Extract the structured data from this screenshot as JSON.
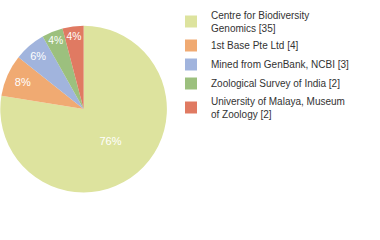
{
  "chart_data": {
    "type": "pie",
    "categories": [
      "Centre for Biodiversity Genomics [35]",
      "1st Base Pte Ltd [4]",
      "Mined from GenBank, NCBI [3]",
      "Zoological Survey of India [2]",
      "University of Malaya, Museum of Zoology [2]"
    ],
    "values": [
      76,
      8,
      6,
      4,
      4
    ],
    "value_labels": [
      "76%",
      "8%",
      "6%",
      "4%",
      "4%"
    ],
    "colors": [
      "#dde39e",
      "#f0aa72",
      "#a1b4dd",
      "#9cc07e",
      "#e07a62"
    ],
    "data_labels": true,
    "legend": "top right"
  }
}
